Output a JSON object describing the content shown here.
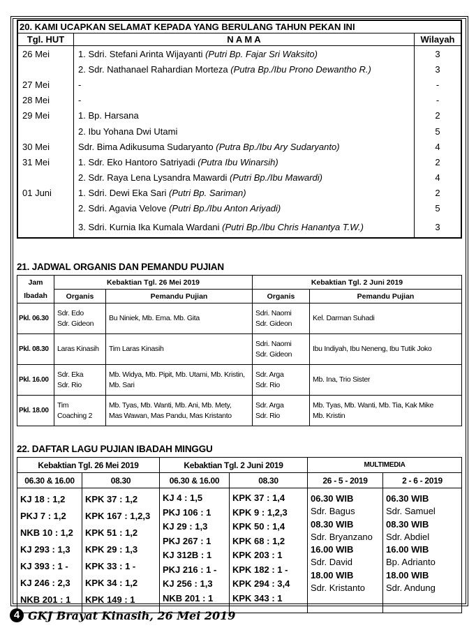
{
  "birthday": {
    "title": "20. KAMI UCAPKAN SELAMAT KEPADA YANG BERULANG TAHUN PEKAN INI",
    "headers": [
      "Tgl. HUT",
      "N A M A",
      "Wilayah"
    ],
    "rows": [
      {
        "date": "26  Mei",
        "name": "1. Sdri. Stefani Arinta Wijayanti ",
        "note": "(Putri Bp. Fajar Sri Waksito)",
        "w": "3"
      },
      {
        "date": "",
        "name": "2. Sdr. Nathanael Rahardian Morteza ",
        "note": "(Putra Bp./Ibu Prono Dewantho R.)",
        "w": "3"
      },
      {
        "date": "27  Mei",
        "name": "-",
        "note": "",
        "w": "-"
      },
      {
        "date": "28  Mei",
        "name": "-",
        "note": "",
        "w": "-"
      },
      {
        "date": "29  Mei",
        "name": "1. Bp. Harsana",
        "note": "",
        "w": "2"
      },
      {
        "date": "",
        "name": "2. Ibu Yohana Dwi Utami",
        "note": "",
        "w": "5"
      },
      {
        "date": "30  Mei",
        "name": "Sdr. Bima Adikusuma Sudaryanto ",
        "note": "(Putra Bp./Ibu Ary Sudaryanto)",
        "w": "4"
      },
      {
        "date": "31  Mei",
        "name": "1. Sdr. Eko Hantoro Satriyadi ",
        "note": "(Putra Ibu Winarsih)",
        "w": "2"
      },
      {
        "date": "",
        "name": "2. Sdr. Raya Lena Lysandra Mawardi ",
        "note": "(Putri Bp./Ibu Mawardi)",
        "w": "4"
      },
      {
        "date": "01  Juni",
        "name": "1. Sdri. Dewi Eka Sari ",
        "note": "(Putri Bp. Sariman)",
        "w": "2"
      },
      {
        "date": "",
        "name": "2. Sdri. Agavia Velove ",
        "note": "(Putri Bp./Ibu Anton Ariyadi)",
        "w": "5"
      },
      {
        "date": "",
        "name": "3. Sdri. Kurnia Ika Kumala Wardani ",
        "note": "(Putri Bp./Ibu Chris Hanantya T.W.)",
        "w": "3"
      }
    ]
  },
  "organist": {
    "title": "21. JADWAL ORGANIS DAN PEMANDU PUJIAN",
    "jam_header": "Jam Ibadah",
    "service1": "Kebaktian Tgl. 26 Mei 2019",
    "service2": "Kebaktian Tgl. 2 Juni 2019",
    "sub": [
      "Organis",
      "Pemandu Pujian",
      "Organis",
      "Pemandu Pujian"
    ],
    "rows": [
      [
        "Pkl. 06.30",
        "Sdr. Edo\nSdr. Gideon",
        "Bu Niniek, Mb. Ema. Mb. Gita",
        "Sdri. Naomi\nSdr. Gideon",
        "Kel. Darman Suhadi"
      ],
      [
        "Pkl. 08.30",
        "Laras Kinasih",
        "Tim Laras Kinasih",
        "Sdri. Naomi\nSdr. Gideon",
        "Ibu Indiyah, Ibu Neneng, Ibu Tutik Joko"
      ],
      [
        "Pkl. 16.00",
        "Sdr. Eka\nSdr. Rio",
        "Mb. Widya, Mb. Pipit, Mb. Utami, Mb. Kristin,\nMb. Sari",
        "Sdr. Arga\nSdr. Rio",
        "Mb. Ina, Trio Sister"
      ],
      [
        "Pkl. 18.00",
        "Tim\nCoaching 2",
        "Mb. Tyas, Mb. Wanti, Mb. Ani, Mb. Mety,\nMas Wawan, Mas Pandu, Mas Kristanto",
        "Sdr. Arga\nSdr. Rio",
        "Mb. Tyas, Mb. Wanti, Mb. Tia, Kak Mike\nMb. Kristin"
      ]
    ]
  },
  "songs": {
    "title": "22. DAFTAR LAGU PUJIAN IBADAH MINGGU",
    "groups": [
      "Kebaktian Tgl. 26 Mei 2019",
      "Kebaktian Tgl. 2 Juni 2019",
      "MULTIMEDIA"
    ],
    "sub": [
      "06.30 & 16.00",
      "08.30",
      "06.30 & 16.00",
      "08.30",
      "26 - 5 - 2019",
      "2 - 6 - 2019"
    ],
    "cols": [
      [
        "KJ 18 : 1,2",
        "PKJ 7 : 1,2",
        "NKB 10 : 1,2",
        "KJ 293 : 1,3",
        "KJ 393 : 1 -",
        "KJ 246 : 2,3",
        "NKB 201 : 1"
      ],
      [
        "KPK 37 : 1,2",
        "KPK 167 : 1,2,3",
        "KPK 51 : 1,2",
        "KPK 29 : 1,3",
        "KPK 33 : 1 -",
        "KPK 34 : 1,2",
        "KPK 149 : 1"
      ],
      [
        "KJ 4 : 1,5",
        "PKJ 106 : 1",
        "KJ 29 : 1,3",
        "PKJ 267 : 1",
        "KJ 312B : 1",
        "PKJ 216 : 1 -",
        "KJ 256 : 1,3",
        "NKB 201 : 1"
      ],
      [
        "KPK 37 : 1,4",
        "KPK 9 : 1,2,3",
        "KPK 50 : 1,4",
        "KPK 68 : 1,2",
        "KPK 203 : 1",
        "KPK 182 : 1 -",
        "KPK 294 : 3,4",
        "KPK 343 : 1"
      ]
    ],
    "multimedia": [
      [
        "06.30 WIB",
        "Sdr. Bagus",
        "08.30 WIB",
        "Sdr. Bryanzano",
        "16.00 WIB",
        "Sdr. David",
        "18.00 WIB",
        "Sdr. Kristanto"
      ],
      [
        "06.30 WIB",
        "Sdr. Samuel",
        "08.30 WIB",
        "Sdr. Abdiel",
        "16.00 WIB",
        "Bp. Adrianto",
        "18.00 WIB",
        "Sdr. Andung"
      ]
    ]
  },
  "footer": {
    "page": "4",
    "text": "GKJ Brayat Kinasih, 26 Mei 2019"
  }
}
